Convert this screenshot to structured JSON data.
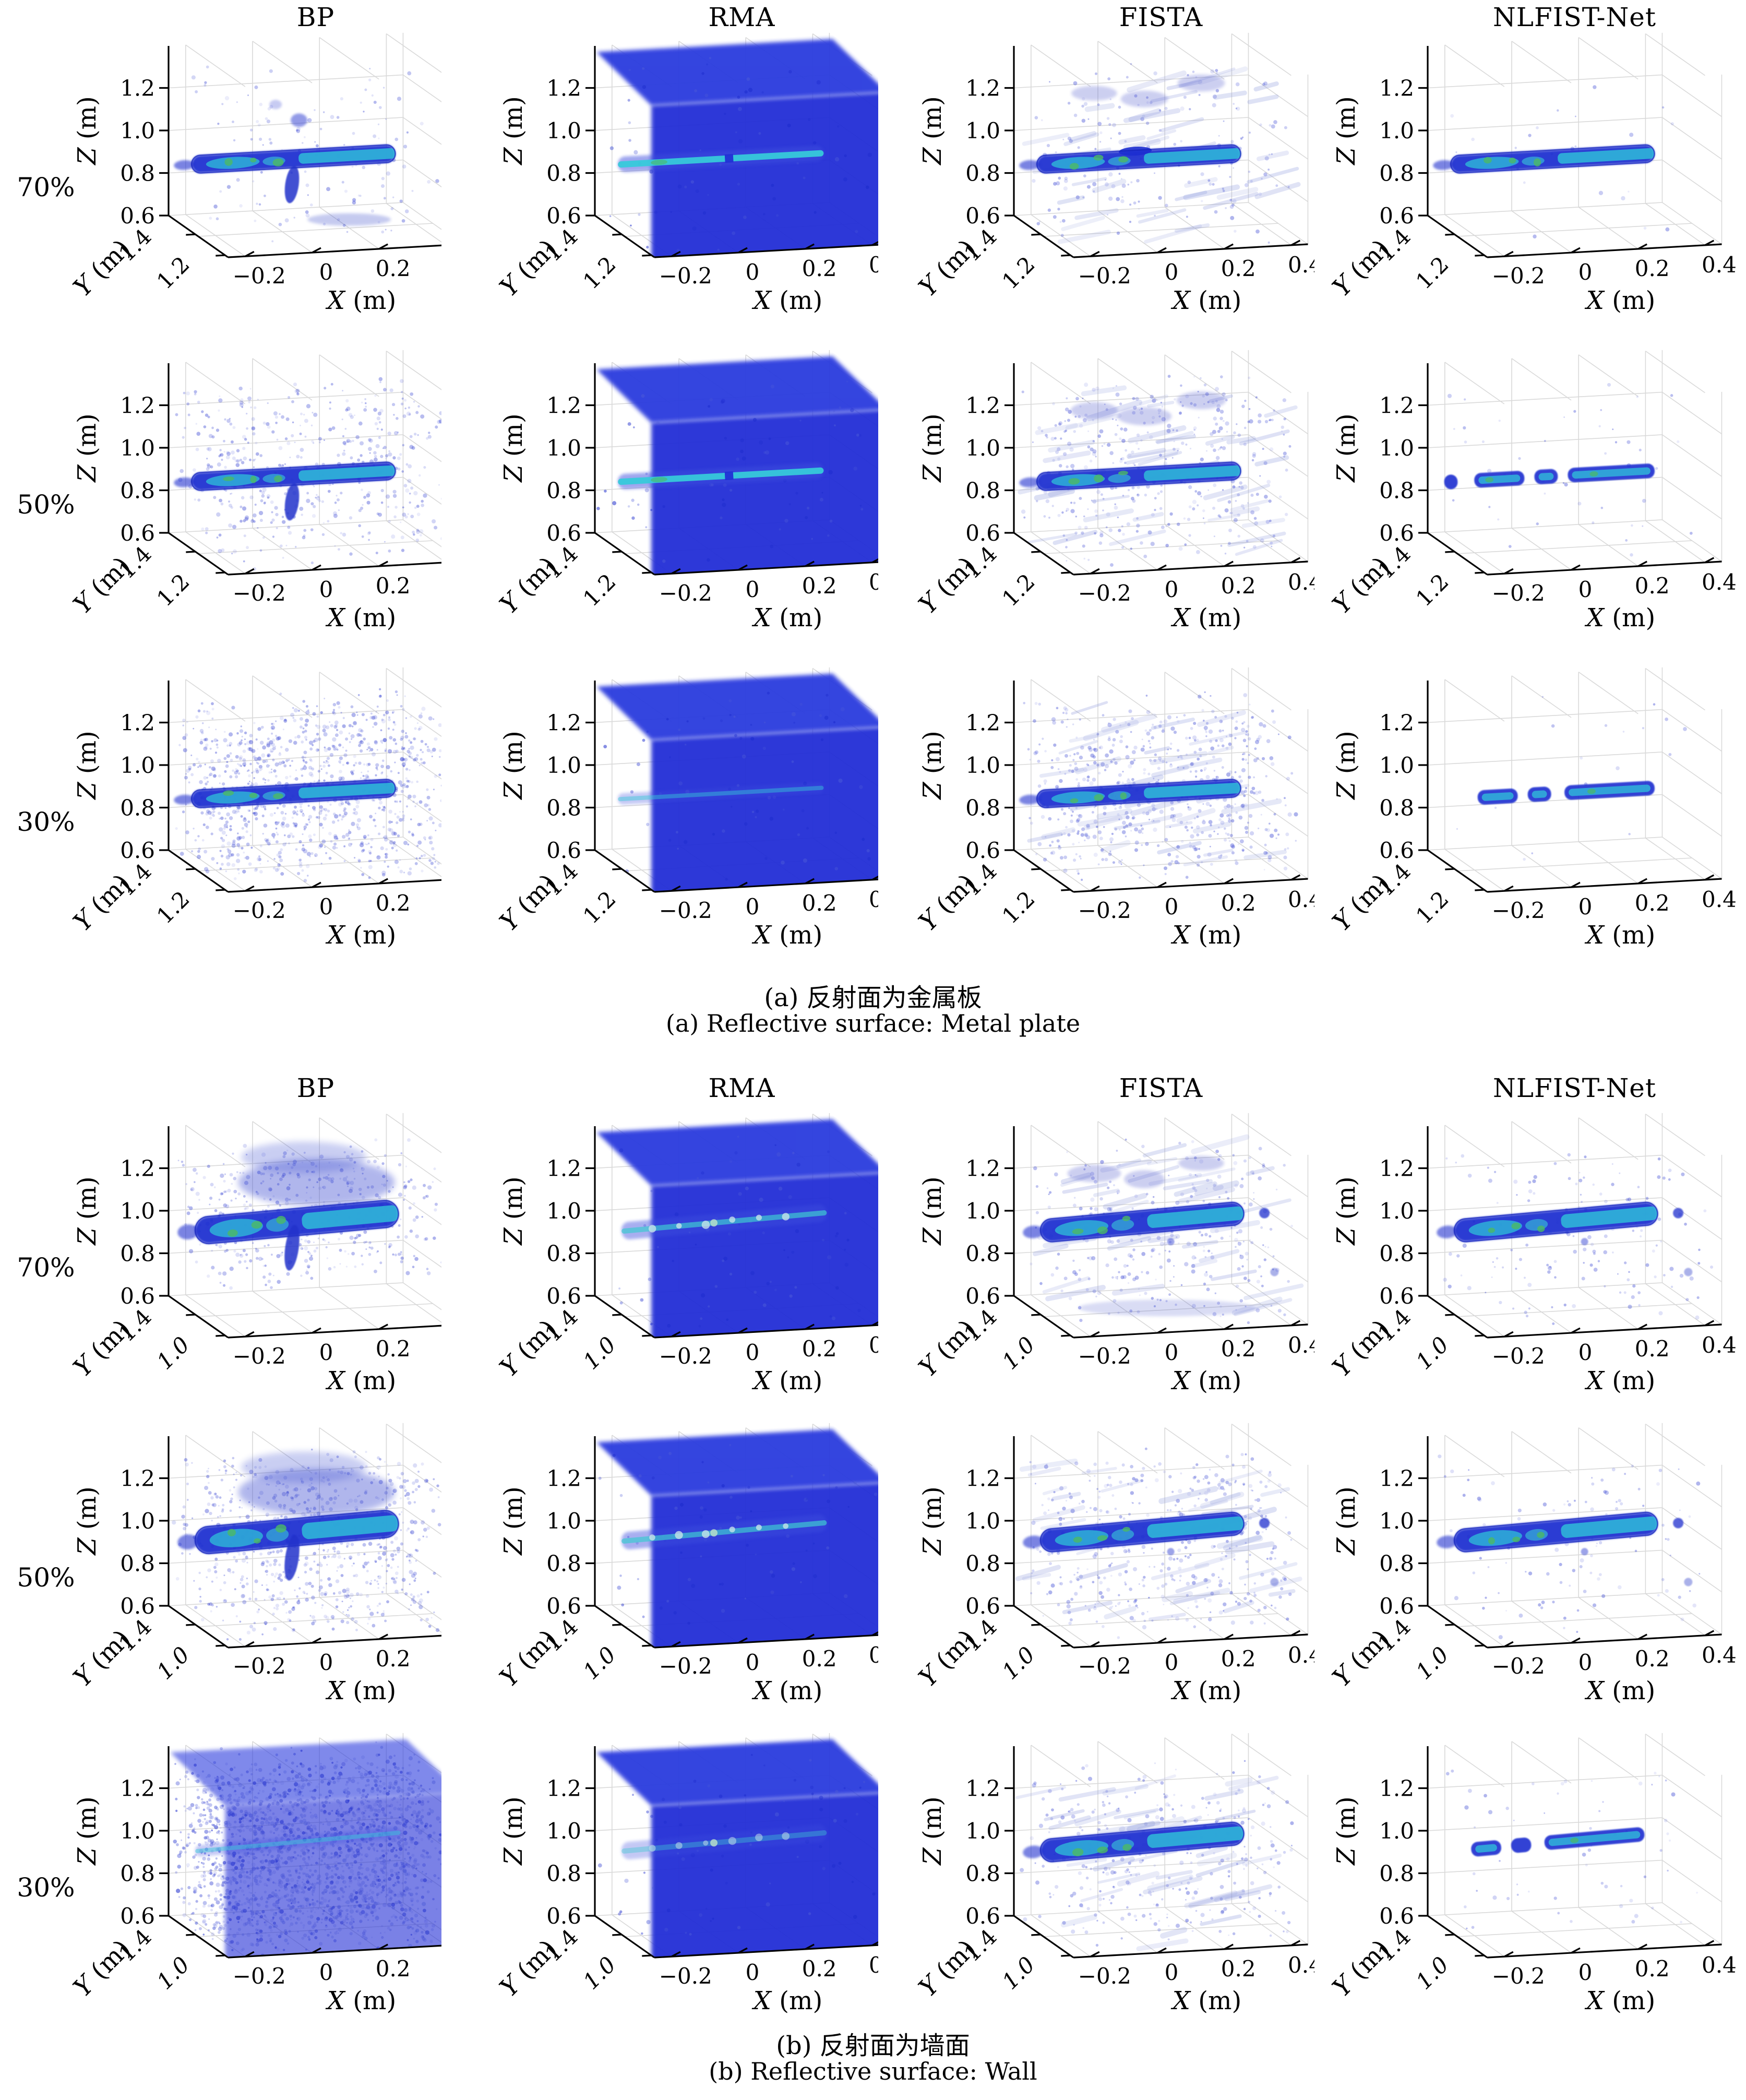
{
  "page": {
    "background": "#ffffff"
  },
  "colors": {
    "axis": "#000000",
    "grid": "#d9d9d9",
    "solid_blue": "#212fd6",
    "solid_blue_top": "#2c3ade",
    "target_blue": "#1c2dd0",
    "outline_blue": "#1322bc",
    "core_cyan": "#30c3da",
    "core_green": "#4cb964",
    "noise_blue": "#4753d6",
    "streak_blue": "#8d99dd"
  },
  "axes": {
    "xlabel": "X (m)",
    "ylabel": "Y (m)",
    "zlabel": "Z (m)",
    "x_ticks": [
      {
        "v": -0.2,
        "t": "−0.2"
      },
      {
        "v": 0,
        "t": "0"
      },
      {
        "v": 0.2,
        "t": "0.2"
      },
      {
        "v": 0.4,
        "t": "0.4"
      }
    ],
    "z_ticks": [
      {
        "v": 0.6,
        "t": "0.6"
      },
      {
        "v": 0.8,
        "t": "0.8"
      },
      {
        "v": 1.0,
        "t": "1.0"
      },
      {
        "v": 1.2,
        "t": "1.2"
      }
    ],
    "x_range": [
      -0.3,
      0.5
    ],
    "z_range": [
      0.6,
      1.4
    ]
  },
  "chart_data": {
    "type": "scatter",
    "title": "",
    "description": "3D radar imaging reconstructions: four algorithms (columns) at three sampling rates (rows) for two reflective surfaces. Each panel is a 3D voxel scatter plot of the reconstructed target slab near Z = 1.0 m; blue = low reflectivity noise, cyan/green = strong target response.",
    "grid": true,
    "legend_position": "none",
    "sections": [
      {
        "id": "a",
        "caption_zh": "(a) 反射面为金属板",
        "caption_en": "(a) Reflective surface: Metal plate",
        "methods": [
          "BP",
          "RMA",
          "FISTA",
          "NLFIST-Net"
        ],
        "sampling_rates": [
          "70%",
          "50%",
          "30%"
        ],
        "y_ticks": [
          "1.4",
          "1.2"
        ],
        "y_tick_styles": [
          "normal",
          "normal"
        ],
        "target": {
          "slab_z": 0.95,
          "slab_x": [
            -0.28,
            0.335
          ],
          "tilt": 0
        },
        "cells": [
          [
            {
              "method": "BP",
              "rate": "70%",
              "noise": 0.09,
              "slab": "strong",
              "spike": true,
              "blob": true,
              "smudge": true
            },
            {
              "method": "RMA",
              "rate": "70%",
              "solid": true,
              "slab": "stripe",
              "stripe_gap": true
            },
            {
              "method": "FISTA",
              "rate": "70%",
              "noise": 0.12,
              "streaks": true,
              "slab": "strong",
              "wavy": true,
              "echo": true,
              "clusters": true
            },
            {
              "method": "NLFIST-Net",
              "rate": "70%",
              "noise": 0.015,
              "slab": "strong"
            }
          ],
          [
            {
              "method": "BP",
              "rate": "50%",
              "noise": 0.32,
              "slab": "strong",
              "spike": true
            },
            {
              "method": "RMA",
              "rate": "50%",
              "solid": true,
              "slab": "stripe",
              "stripe_gap": true
            },
            {
              "method": "FISTA",
              "rate": "50%",
              "noise": 0.26,
              "streaks": true,
              "slab": "strong",
              "clusters": true
            },
            {
              "method": "NLFIST-Net",
              "rate": "50%",
              "noise": 0.03,
              "slab": "segments",
              "segments": [
                [
                  -0.3,
                  -0.26
                ],
                [
                  -0.21,
                  -0.06
                ],
                [
                  -0.03,
                  0.04
                ],
                [
                  0.07,
                  0.33
                ]
              ]
            }
          ],
          [
            {
              "method": "BP",
              "rate": "30%",
              "noise": 0.72,
              "slab": "strong"
            },
            {
              "method": "RMA",
              "rate": "30%",
              "solid": true,
              "slab": "faint"
            },
            {
              "method": "FISTA",
              "rate": "30%",
              "noise": 0.4,
              "streaks": true,
              "slab": "strong"
            },
            {
              "method": "NLFIST-Net",
              "rate": "30%",
              "noise": 0.012,
              "slab": "segments",
              "segments": [
                [
                  -0.2,
                  -0.08
                ],
                [
                  -0.05,
                  0.02
                ],
                [
                  0.06,
                  0.33
                ]
              ]
            }
          ]
        ]
      },
      {
        "id": "b",
        "caption_zh": "(b) 反射面为墙面",
        "caption_en": "(b) Reflective surface: Wall",
        "methods": [
          "BP",
          "RMA",
          "FISTA",
          "NLFIST-Net"
        ],
        "sampling_rates": [
          "70%",
          "50%",
          "30%"
        ],
        "y_ticks": [
          "1.4",
          "1.0"
        ],
        "y_tick_styles": [
          "normal",
          "italic"
        ],
        "target": {
          "slab_z": 1.03,
          "slab_x": [
            -0.27,
            0.345
          ],
          "tilt": -2
        },
        "cells": [
          [
            {
              "method": "BP",
              "rate": "70%",
              "noise": 0.3,
              "nzmin": 0.78,
              "slab": "strong",
              "thick": true,
              "cloud": true,
              "spike": true
            },
            {
              "method": "RMA",
              "rate": "70%",
              "solid": true,
              "slab": "spots"
            },
            {
              "method": "FISTA",
              "rate": "70%",
              "noise": 0.2,
              "streaks": true,
              "slab": "strong",
              "dots": true,
              "band": true,
              "clusters": true
            },
            {
              "method": "NLFIST-Net",
              "rate": "70%",
              "noise": 0.1,
              "slab": "strong",
              "dots": true
            }
          ],
          [
            {
              "method": "BP",
              "rate": "50%",
              "noise": 0.5,
              "slab": "strong",
              "thick": true,
              "cloud": true,
              "spike": true
            },
            {
              "method": "RMA",
              "rate": "50%",
              "solid": true,
              "slab": "spots"
            },
            {
              "method": "FISTA",
              "rate": "50%",
              "noise": 0.28,
              "streaks": true,
              "slab": "strong",
              "dots": true
            },
            {
              "method": "NLFIST-Net",
              "rate": "50%",
              "noise": 0.07,
              "slab": "strong",
              "dots": true
            }
          ],
          [
            {
              "method": "BP",
              "rate": "30%",
              "noise": 0.95,
              "speckle": true,
              "slab": "faint"
            },
            {
              "method": "RMA",
              "rate": "30%",
              "solid": true,
              "slab": "spots",
              "faint": true
            },
            {
              "method": "FISTA",
              "rate": "30%",
              "noise": 0.22,
              "streaks": true,
              "slab": "strong"
            },
            {
              "method": "NLFIST-Net",
              "rate": "30%",
              "noise": 0.04,
              "slab": "segments",
              "segments": [
                [
                  -0.22,
                  -0.13
                ],
                [
                  -0.1,
                  -0.04
                ],
                [
                  0.0,
                  0.3
                ]
              ]
            }
          ]
        ]
      }
    ]
  },
  "layout_text": {}
}
